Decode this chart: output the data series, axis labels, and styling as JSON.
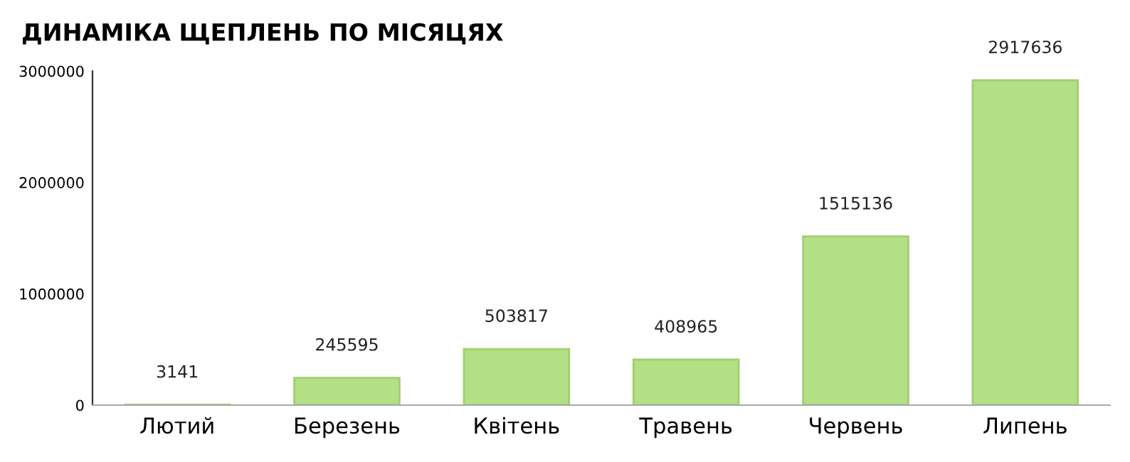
{
  "chart_data": {
    "type": "bar",
    "title": "ДИНАМІКА ЩЕПЛЕНЬ ПО МІСЯЦЯХ",
    "categories": [
      "Лютий",
      "Березень",
      "Квітень",
      "Травень",
      "Червень",
      "Липень"
    ],
    "values": [
      3141,
      245595,
      503817,
      408965,
      1515136,
      2917636
    ],
    "color": "#b3df86",
    "ylim": [
      0,
      3000000
    ],
    "yticks": [
      0,
      1000000,
      2000000,
      3000000
    ],
    "grid": false,
    "legend": false,
    "data_labels": true
  }
}
